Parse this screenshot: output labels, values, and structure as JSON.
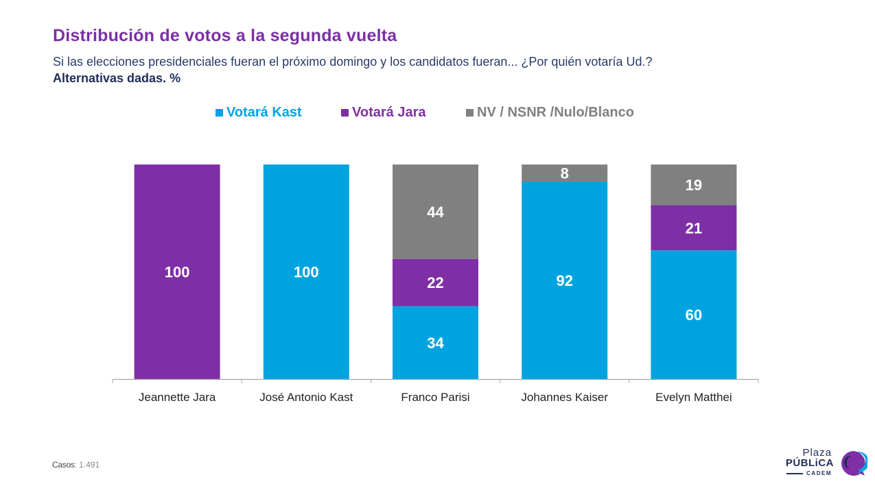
{
  "header": {
    "title": "Distribución de votos a la segunda vuelta",
    "subtitle": "Si las elecciones presidenciales fueran el próximo domingo y los candidatos fueran... ¿Por quién votaría Ud.?",
    "subtitle2": "Alternativas dadas. %"
  },
  "legend": [
    {
      "label": "Votará Kast",
      "color": "#00a3e0"
    },
    {
      "label": "Votará Jara",
      "color": "#7f2fa6"
    },
    {
      "label": "NV / NSNR /Nulo/Blanco",
      "color": "#808080"
    }
  ],
  "chart_data": {
    "type": "bar",
    "stacked": true,
    "title": "Distribución de votos a la segunda vuelta",
    "xlabel": "",
    "ylabel": "",
    "ylim": [
      0,
      100
    ],
    "grid": false,
    "legend_position": "top-center",
    "categories": [
      "Jeannette Jara",
      "José Antonio Kast",
      "Franco Parisi",
      "Johannes Kaiser",
      "Evelyn Matthei"
    ],
    "series": [
      {
        "name": "Votará Kast",
        "color": "#00a3e0",
        "values": [
          0,
          100,
          34,
          92,
          60
        ]
      },
      {
        "name": "Votará Jara",
        "color": "#7f2fa6",
        "values": [
          100,
          0,
          22,
          0,
          21
        ]
      },
      {
        "name": "NV / NSNR /Nulo/Blanco",
        "color": "#808080",
        "values": [
          0,
          0,
          44,
          8,
          19
        ]
      }
    ]
  },
  "footer": {
    "cases_label": "Casos",
    "cases_value": ": 1.491"
  },
  "logo": {
    "line1": "Plaza",
    "line2": "PÚBLiCA",
    "line3": "CADEM"
  }
}
